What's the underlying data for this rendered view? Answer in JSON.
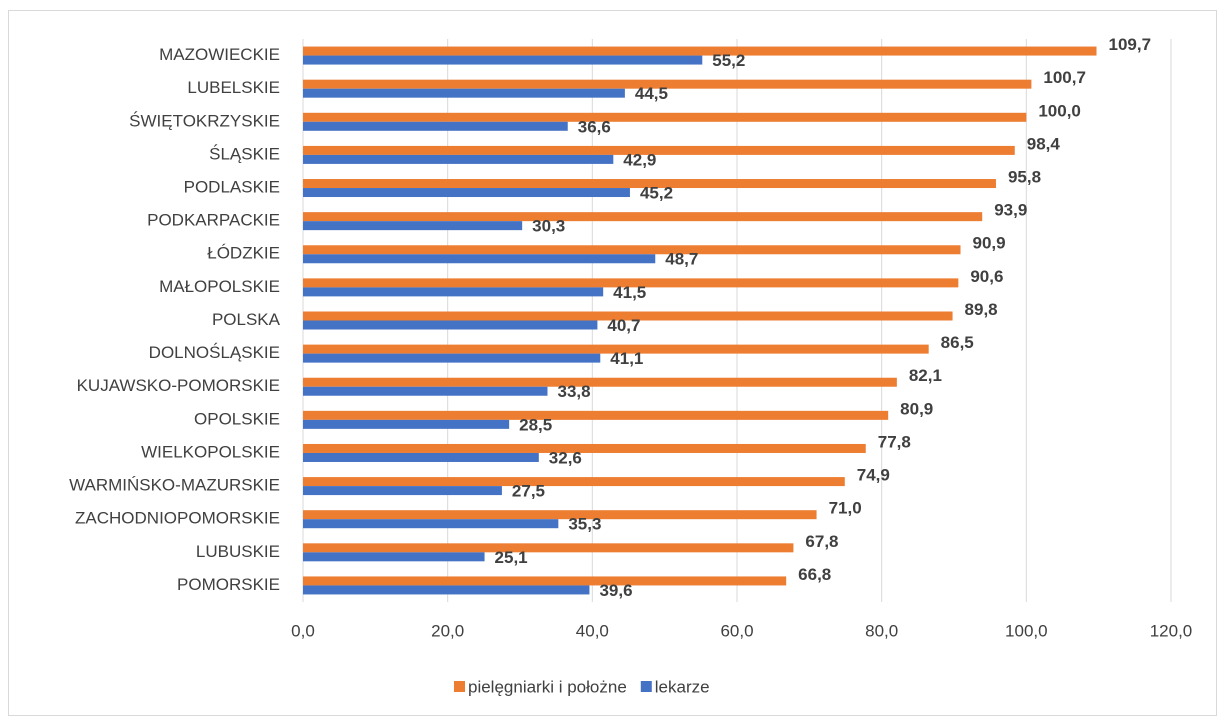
{
  "chart_data": {
    "type": "bar",
    "orientation": "horizontal",
    "categories": [
      "MAZOWIECKIE",
      "LUBELSKIE",
      "ŚWIĘTOKRZYSKIE",
      "ŚLĄSKIE",
      "PODLASKIE",
      "PODKARPACKIE",
      "ŁÓDZKIE",
      "MAŁOPOLSKIE",
      "POLSKA",
      "DOLNOŚLĄSKIE",
      "KUJAWSKO-POMORSKIE",
      "OPOLSKIE",
      "WIELKOPOLSKIE",
      "WARMIŃSKO-MAZURSKIE",
      "ZACHODNIOPOMORSKIE",
      "LUBUSKIE",
      "POMORSKIE"
    ],
    "series": [
      {
        "name": "pielęgniarki i położne",
        "color": "#ed7d31",
        "values": [
          109.7,
          100.7,
          100.0,
          98.4,
          95.8,
          93.9,
          90.9,
          90.6,
          89.8,
          86.5,
          82.1,
          80.9,
          77.8,
          74.9,
          71.0,
          67.8,
          66.8
        ],
        "value_labels": [
          "109,7",
          "100,7",
          "100,0",
          "98,4",
          "95,8",
          "93,9",
          "90,9",
          "90,6",
          "89,8",
          "86,5",
          "82,1",
          "80,9",
          "77,8",
          "74,9",
          "71,0",
          "67,8",
          "66,8"
        ]
      },
      {
        "name": "lekarze",
        "color": "#4472c4",
        "values": [
          55.2,
          44.5,
          36.6,
          42.9,
          45.2,
          30.3,
          48.7,
          41.5,
          40.7,
          41.1,
          33.8,
          28.5,
          32.6,
          27.5,
          35.3,
          25.1,
          39.6
        ],
        "value_labels": [
          "55,2",
          "44,5",
          "36,6",
          "42,9",
          "45,2",
          "30,3",
          "48,7",
          "41,5",
          "40,7",
          "41,1",
          "33,8",
          "28,5",
          "32,6",
          "27,5",
          "35,3",
          "25,1",
          "39,6"
        ]
      }
    ],
    "xlim": [
      0,
      120
    ],
    "xticks": [
      {
        "value": 0,
        "label": "0,0"
      },
      {
        "value": 20,
        "label": "20,0"
      },
      {
        "value": 40,
        "label": "40,0"
      },
      {
        "value": 60,
        "label": "60,0"
      },
      {
        "value": 80,
        "label": "80,0"
      },
      {
        "value": 100,
        "label": "100,0"
      },
      {
        "value": 120,
        "label": "120,0"
      }
    ],
    "grid": true,
    "legend": "bottom"
  }
}
